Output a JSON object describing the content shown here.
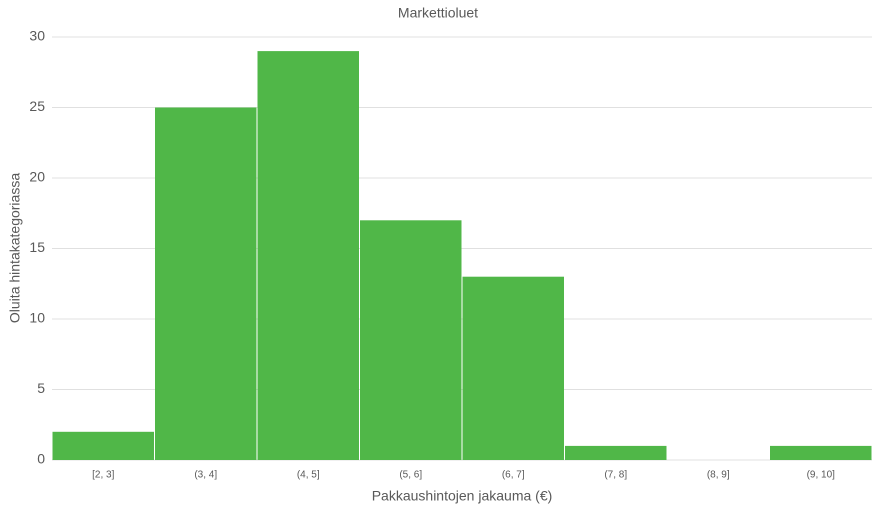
{
  "chart_data": {
    "type": "bar",
    "title": "Markettioluet",
    "x_label": "Pakkaushintojen jakauma (€)",
    "y_label": "Oluita hintakategoriassa",
    "categories": [
      "[2, 3]",
      "(3, 4]",
      "(4, 5]",
      "(5, 6]",
      "(6, 7]",
      "(7, 8]",
      "(8, 9]",
      "(9, 10]"
    ],
    "values": [
      2,
      25,
      29,
      17,
      13,
      1,
      0,
      1
    ],
    "color": "#50b748",
    "ylim": [
      0,
      30
    ],
    "yticks": [
      0,
      5,
      10,
      15,
      20,
      25,
      30
    ],
    "grid": true
  }
}
